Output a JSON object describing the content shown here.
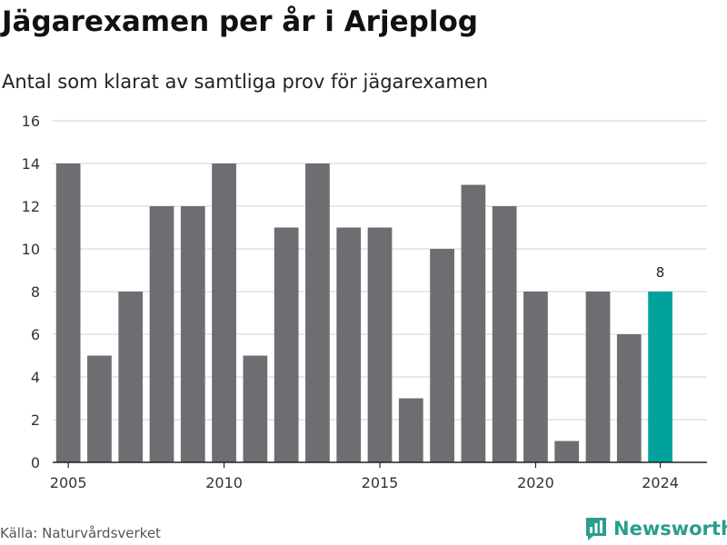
{
  "header": {
    "title": "Jägarexamen per år i Arjeplog",
    "subtitle": "Antal som klarat av samtliga prov för jägarexamen"
  },
  "footer": {
    "source": "Källa: Naturvårdsverket",
    "brand": "Newsworthy",
    "brand_icon": "bar-chart-logo-icon"
  },
  "colors": {
    "bar": "#6e6d72",
    "highlight": "#00a29b",
    "grid": "#d9d9d9",
    "brand": "#2a9d8f"
  },
  "chart_data": {
    "type": "bar",
    "x": [
      2005,
      2006,
      2007,
      2008,
      2009,
      2010,
      2011,
      2012,
      2013,
      2014,
      2015,
      2016,
      2017,
      2018,
      2019,
      2020,
      2021,
      2022,
      2023,
      2024
    ],
    "values": [
      14,
      5,
      8,
      12,
      12,
      14,
      5,
      11,
      14,
      11,
      11,
      3,
      10,
      13,
      12,
      8,
      1,
      8,
      6,
      8
    ],
    "highlight_index": 19,
    "data_labels": [
      {
        "index": 19,
        "text": "8"
      }
    ],
    "ylim": [
      0,
      16
    ],
    "yticks": [
      0,
      2,
      4,
      6,
      8,
      10,
      12,
      14,
      16
    ],
    "xticks": [
      2005,
      2010,
      2015,
      2020,
      2024
    ],
    "grid": true
  }
}
